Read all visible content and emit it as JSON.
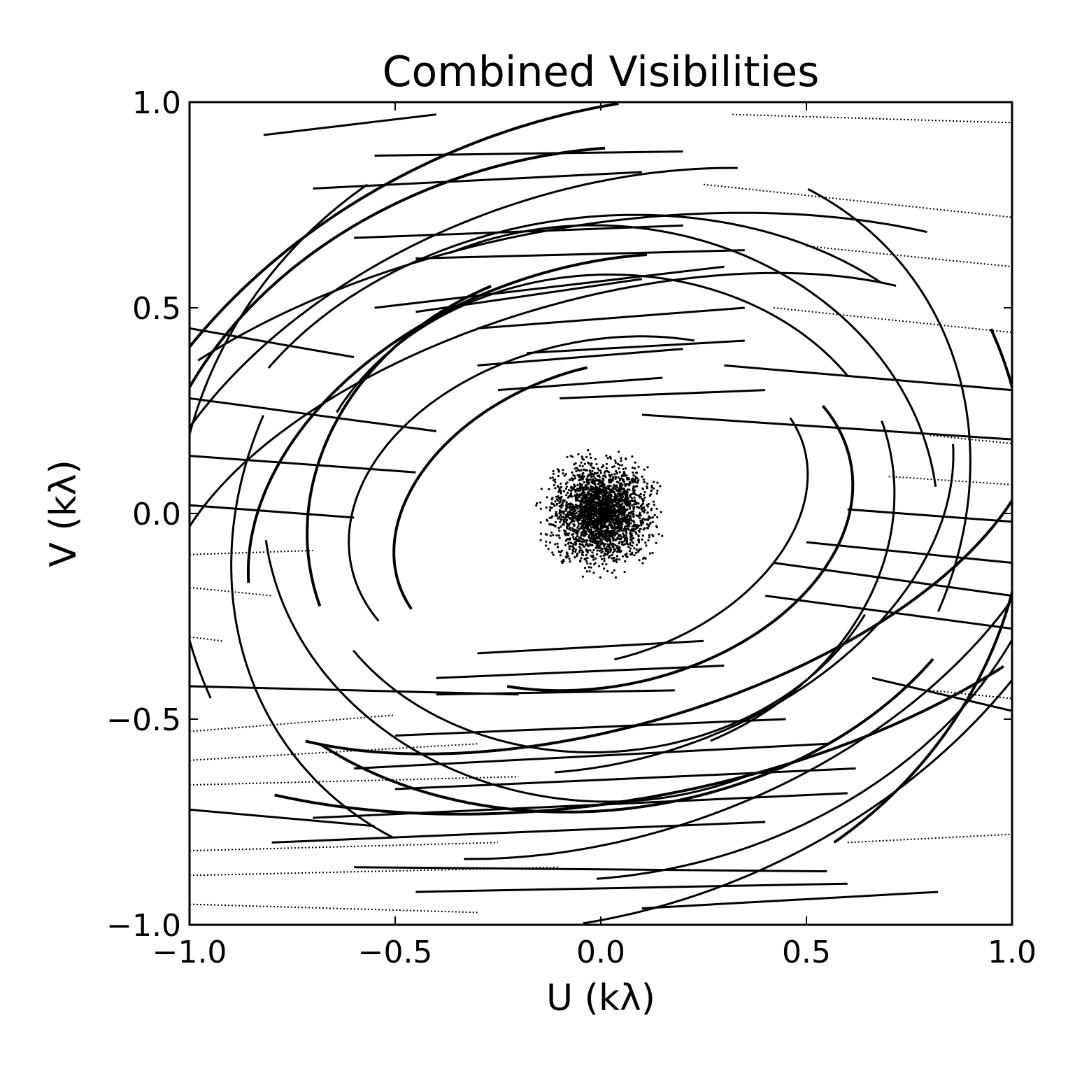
{
  "chart_data": {
    "type": "scatter",
    "title": "Combined Visibilities",
    "xlabel": "U (kλ)",
    "ylabel": "V (kλ)",
    "xlim": [
      -1.0,
      1.0
    ],
    "ylim": [
      -1.0,
      1.0
    ],
    "grid": false,
    "legend": "none",
    "x_ticks": [
      "−1.0",
      "−0.5",
      "0.0",
      "0.5",
      "1.0"
    ],
    "y_ticks": [
      "−1.0",
      "−0.5",
      "0.0",
      "0.5",
      "1.0"
    ],
    "x_tick_values": [
      -1.0,
      -0.5,
      0.0,
      0.5,
      1.0
    ],
    "y_tick_values": [
      -1.0,
      -0.5,
      0.0,
      0.5,
      1.0
    ],
    "marker_color": "#000000",
    "central_cluster": {
      "center": [
        0.0,
        0.0
      ],
      "radius": 0.16
    },
    "tracks": [
      {
        "a": 0.72,
        "b": 0.61,
        "rot": 14,
        "t0": 100,
        "t1": 185
      },
      {
        "a": 0.72,
        "b": 0.61,
        "rot": 14,
        "t0": 280,
        "t1": 365
      },
      {
        "a": 0.62,
        "b": 0.42,
        "rot": 12,
        "t0": 60,
        "t1": 200
      },
      {
        "a": 0.62,
        "b": 0.42,
        "rot": 12,
        "t0": 240,
        "t1": 380
      },
      {
        "a": 0.72,
        "b": 0.58,
        "rot": 4,
        "t0": 30,
        "t1": 150
      },
      {
        "a": 0.72,
        "b": 0.58,
        "rot": 4,
        "t0": 210,
        "t1": 330
      },
      {
        "a": 0.88,
        "b": 0.6,
        "rot": 18,
        "t0": 70,
        "t1": 170
      },
      {
        "a": 0.88,
        "b": 0.6,
        "rot": 18,
        "t0": 250,
        "t1": 350
      },
      {
        "a": 0.98,
        "b": 0.72,
        "rot": 8,
        "t0": 40,
        "t1": 140
      },
      {
        "a": 0.98,
        "b": 0.72,
        "rot": 8,
        "t0": 220,
        "t1": 320
      },
      {
        "a": 1.2,
        "b": 0.78,
        "rot": 20,
        "t0": 60,
        "t1": 150
      },
      {
        "a": 1.2,
        "b": 0.78,
        "rot": 20,
        "t0": 240,
        "t1": 330
      },
      {
        "a": 1.12,
        "b": 0.88,
        "rot": 12,
        "t0": 80,
        "t1": 160
      },
      {
        "a": 1.12,
        "b": 0.88,
        "rot": 12,
        "t0": 260,
        "t1": 340
      },
      {
        "a": 1.05,
        "b": 0.98,
        "rot": 30,
        "t0": 95,
        "t1": 175
      },
      {
        "a": 1.05,
        "b": 0.98,
        "rot": 30,
        "t0": 275,
        "t1": 355
      },
      {
        "a": 0.82,
        "b": 0.7,
        "rot": -4,
        "t0": 10,
        "t1": 120
      },
      {
        "a": 0.82,
        "b": 0.7,
        "rot": -4,
        "t0": 190,
        "t1": 300
      },
      {
        "a": 0.52,
        "b": 0.35,
        "rot": 20,
        "t0": 80,
        "t1": 190
      },
      {
        "a": 0.52,
        "b": 0.35,
        "rot": 20,
        "t0": 260,
        "t1": 370
      },
      {
        "a": 1.1,
        "b": 0.52,
        "rot": 16,
        "t0": 40,
        "t1": 170
      },
      {
        "a": 1.1,
        "b": 0.52,
        "rot": 16,
        "t0": 220,
        "t1": 350
      },
      {
        "a": 0.95,
        "b": 0.82,
        "rot": 40,
        "t0": 120,
        "t1": 200
      },
      {
        "a": 0.95,
        "b": 0.82,
        "rot": 40,
        "t0": 300,
        "t1": 380
      },
      {
        "a": 1.3,
        "b": 0.95,
        "rot": 24,
        "t0": 70,
        "t1": 140
      },
      {
        "a": 1.3,
        "b": 0.95,
        "rot": 24,
        "t0": 250,
        "t1": 320
      },
      {
        "a": 1.4,
        "b": 0.7,
        "rot": 10,
        "t0": 50,
        "t1": 130
      },
      {
        "a": 1.4,
        "b": 0.7,
        "rot": 10,
        "t0": 230,
        "t1": 310
      }
    ],
    "strokes": [
      {
        "x0": -1.0,
        "y0": 0.45,
        "x1": -0.6,
        "y1": 0.38,
        "dotted": false
      },
      {
        "x0": -1.0,
        "y0": 0.28,
        "x1": -0.4,
        "y1": 0.2,
        "dotted": false
      },
      {
        "x0": -1.0,
        "y0": 0.14,
        "x1": -0.45,
        "y1": 0.1,
        "dotted": false
      },
      {
        "x0": -1.0,
        "y0": 0.02,
        "x1": -0.6,
        "y1": -0.01,
        "dotted": false
      },
      {
        "x0": -1.0,
        "y0": -0.1,
        "x1": -0.7,
        "y1": -0.09,
        "dotted": true
      },
      {
        "x0": -1.0,
        "y0": -0.18,
        "x1": -0.8,
        "y1": -0.2,
        "dotted": true
      },
      {
        "x0": -1.0,
        "y0": -0.3,
        "x1": -0.92,
        "y1": -0.31,
        "dotted": true
      },
      {
        "x0": -0.82,
        "y0": 0.92,
        "x1": -0.4,
        "y1": 0.97,
        "dotted": false
      },
      {
        "x0": -0.55,
        "y0": 0.87,
        "x1": 0.2,
        "y1": 0.88,
        "dotted": false
      },
      {
        "x0": -0.7,
        "y0": 0.79,
        "x1": 0.1,
        "y1": 0.83,
        "dotted": false
      },
      {
        "x0": -0.6,
        "y0": 0.67,
        "x1": 0.2,
        "y1": 0.7,
        "dotted": false
      },
      {
        "x0": -0.45,
        "y0": 0.62,
        "x1": 0.35,
        "y1": 0.64,
        "dotted": false
      },
      {
        "x0": -0.55,
        "y0": 0.5,
        "x1": 0.3,
        "y1": 0.6,
        "dotted": false
      },
      {
        "x0": -0.45,
        "y0": 0.49,
        "x1": 0.1,
        "y1": 0.57,
        "dotted": false
      },
      {
        "x0": -0.3,
        "y0": 0.45,
        "x1": 0.35,
        "y1": 0.5,
        "dotted": false
      },
      {
        "x0": -0.18,
        "y0": 0.39,
        "x1": 0.35,
        "y1": 0.42,
        "dotted": false
      },
      {
        "x0": -0.3,
        "y0": 0.36,
        "x1": 0.2,
        "y1": 0.4,
        "dotted": false
      },
      {
        "x0": -0.25,
        "y0": 0.3,
        "x1": 0.15,
        "y1": 0.33,
        "dotted": false
      },
      {
        "x0": -0.1,
        "y0": 0.28,
        "x1": 0.4,
        "y1": 0.3,
        "dotted": false
      },
      {
        "x0": 0.42,
        "y0": 0.5,
        "x1": 1.0,
        "y1": 0.44,
        "dotted": true
      },
      {
        "x0": 0.3,
        "y0": 0.36,
        "x1": 1.0,
        "y1": 0.3,
        "dotted": false
      },
      {
        "x0": 0.1,
        "y0": 0.24,
        "x1": 1.0,
        "y1": 0.18,
        "dotted": false
      },
      {
        "x0": 0.32,
        "y0": 0.97,
        "x1": 1.0,
        "y1": 0.95,
        "dotted": true
      },
      {
        "x0": 0.25,
        "y0": 0.8,
        "x1": 1.0,
        "y1": 0.72,
        "dotted": true
      },
      {
        "x0": 0.5,
        "y0": 0.65,
        "x1": 1.0,
        "y1": 0.6,
        "dotted": true
      },
      {
        "x0": 0.8,
        "y0": 0.19,
        "x1": 1.0,
        "y1": 0.17,
        "dotted": true
      },
      {
        "x0": 0.7,
        "y0": 0.09,
        "x1": 1.0,
        "y1": 0.07,
        "dotted": true
      },
      {
        "x0": 0.6,
        "y0": 0.01,
        "x1": 1.0,
        "y1": -0.02,
        "dotted": false
      },
      {
        "x0": 0.5,
        "y0": -0.07,
        "x1": 1.0,
        "y1": -0.12,
        "dotted": false
      },
      {
        "x0": 0.42,
        "y0": -0.12,
        "x1": 1.0,
        "y1": -0.2,
        "dotted": false
      },
      {
        "x0": 0.4,
        "y0": -0.2,
        "x1": 1.0,
        "y1": -0.28,
        "dotted": false
      },
      {
        "x0": 0.66,
        "y0": -0.4,
        "x1": 1.0,
        "y1": -0.48,
        "dotted": false
      },
      {
        "x0": 0.8,
        "y0": -0.43,
        "x1": 1.0,
        "y1": -0.45,
        "dotted": true
      },
      {
        "x0": -0.4,
        "y0": -0.4,
        "x1": 0.3,
        "y1": -0.37,
        "dotted": false
      },
      {
        "x0": -0.3,
        "y0": -0.34,
        "x1": 0.25,
        "y1": -0.31,
        "dotted": false
      },
      {
        "x0": -0.4,
        "y0": -0.44,
        "x1": 0.18,
        "y1": -0.43,
        "dotted": false
      },
      {
        "x0": -0.5,
        "y0": -0.54,
        "x1": 0.45,
        "y1": -0.5,
        "dotted": false
      },
      {
        "x0": -0.6,
        "y0": -0.62,
        "x1": 0.55,
        "y1": -0.56,
        "dotted": false
      },
      {
        "x0": -0.5,
        "y0": -0.67,
        "x1": 0.62,
        "y1": -0.62,
        "dotted": false
      },
      {
        "x0": -0.7,
        "y0": -0.74,
        "x1": 0.6,
        "y1": -0.68,
        "dotted": false
      },
      {
        "x0": -0.8,
        "y0": -0.8,
        "x1": 0.4,
        "y1": -0.75,
        "dotted": false
      },
      {
        "x0": -1.0,
        "y0": -0.53,
        "x1": -0.5,
        "y1": -0.49,
        "dotted": true
      },
      {
        "x0": -1.0,
        "y0": -0.6,
        "x1": -0.3,
        "y1": -0.56,
        "dotted": true
      },
      {
        "x0": -1.0,
        "y0": -0.66,
        "x1": -0.2,
        "y1": -0.64,
        "dotted": true
      },
      {
        "x0": -1.0,
        "y0": -0.82,
        "x1": -0.25,
        "y1": -0.8,
        "dotted": true
      },
      {
        "x0": -1.0,
        "y0": -0.88,
        "x1": -0.1,
        "y1": -0.86,
        "dotted": true
      },
      {
        "x0": -1.0,
        "y0": -0.95,
        "x1": -0.3,
        "y1": -0.97,
        "dotted": true
      },
      {
        "x0": -1.0,
        "y0": -0.42,
        "x1": -0.2,
        "y1": -0.44,
        "dotted": false
      },
      {
        "x0": -1.0,
        "y0": -0.72,
        "x1": -0.55,
        "y1": -0.76,
        "dotted": false
      },
      {
        "x0": -0.6,
        "y0": -0.86,
        "x1": 0.55,
        "y1": -0.87,
        "dotted": false
      },
      {
        "x0": -0.45,
        "y0": -0.92,
        "x1": 0.6,
        "y1": -0.9,
        "dotted": false
      },
      {
        "x0": 0.1,
        "y0": -0.96,
        "x1": 0.82,
        "y1": -0.92,
        "dotted": false
      },
      {
        "x0": 0.6,
        "y0": -0.8,
        "x1": 1.0,
        "y1": -0.78,
        "dotted": true
      }
    ]
  }
}
